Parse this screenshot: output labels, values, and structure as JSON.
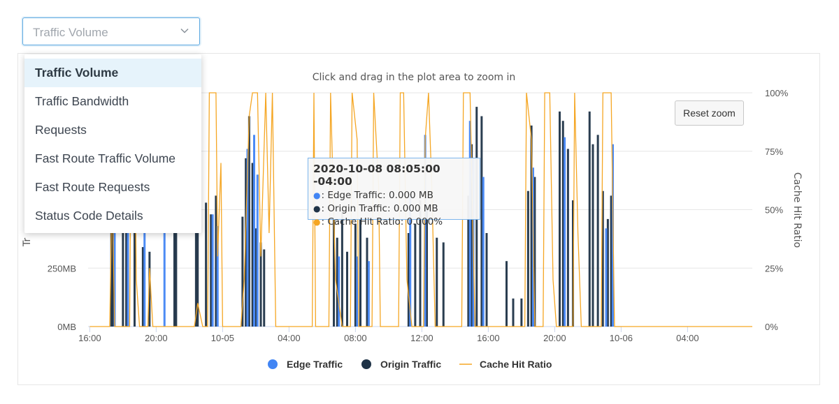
{
  "metric_select": {
    "value": "Traffic Volume",
    "icon": "chevron-down-icon"
  },
  "dropdown": {
    "items": [
      {
        "label": "Traffic Volume",
        "active": true
      },
      {
        "label": "Traffic Bandwidth"
      },
      {
        "label": "Requests"
      },
      {
        "label": "Fast Route Traffic Volume"
      },
      {
        "label": "Fast Route Requests"
      },
      {
        "label": "Status Code Details"
      }
    ]
  },
  "reset_zoom_label": "Reset zoom",
  "tooltip": {
    "title": "2020-10-08 08:05:00 -04:00",
    "rows": [
      {
        "bullet": "●",
        "text": ": Edge Traffic: 0.000 MB",
        "color": "#4285f4"
      },
      {
        "bullet": "●",
        "text": ": Origin Traffic: 0.000 MB",
        "color": "#1f3347"
      },
      {
        "bullet": "●",
        "text": ": Cache Hit Ratio: 0.000%",
        "color": "#f5a623"
      }
    ]
  },
  "chart_data": {
    "type": "bar",
    "subtitle": "Click and drag in the plot area to zoom in",
    "ylabel_left_visible_fragment": "Tr",
    "ylabel_right": "Cache Hit Ratio",
    "y_left_ticks": [
      "0MB",
      "250MB"
    ],
    "y_left_range_mb": [
      0,
      1000
    ],
    "y_right_ticks": [
      "0%",
      "25%",
      "50%",
      "75%",
      "100%"
    ],
    "y_right_range_pct": [
      0,
      100
    ],
    "x_ticks": [
      {
        "label": "16:00",
        "hour": 16
      },
      {
        "label": "20:00",
        "hour": 20
      },
      {
        "label": "10-05",
        "hour": 24
      },
      {
        "label": "04:00",
        "hour": 28
      },
      {
        "label": "08:00",
        "hour": 32
      },
      {
        "label": "12:00",
        "hour": 36
      },
      {
        "label": "16:00",
        "hour": 40
      },
      {
        "label": "20:00",
        "hour": 44
      },
      {
        "label": "10-06",
        "hour": 48
      },
      {
        "label": "04:00",
        "hour": 52
      }
    ],
    "x_range_hours": [
      15.9,
      55.9
    ],
    "grid": true,
    "legend": {
      "placement": "bottom",
      "items": [
        {
          "name": "Edge Traffic",
          "color": "#4285f4",
          "symbol": "circle"
        },
        {
          "name": "Origin Traffic",
          "color": "#1f3347",
          "symbol": "circle"
        },
        {
          "name": "Cache Hit Ratio",
          "color": "#f5a623",
          "symbol": "line"
        }
      ]
    },
    "series": [
      {
        "name": "Origin Traffic",
        "color": "#1f3347",
        "points": [
          [
            17.3,
            480
          ],
          [
            17.4,
            540
          ],
          [
            18.0,
            720
          ],
          [
            18.2,
            640
          ],
          [
            18.7,
            560
          ],
          [
            19.2,
            340
          ],
          [
            19.6,
            320
          ],
          [
            21.1,
            560
          ],
          [
            21.2,
            440
          ],
          [
            22.4,
            820
          ],
          [
            22.5,
            500
          ],
          [
            23.0,
            530
          ],
          [
            23.3,
            480
          ],
          [
            23.6,
            560
          ],
          [
            25.2,
            470
          ],
          [
            25.4,
            720
          ],
          [
            25.6,
            900
          ],
          [
            25.8,
            700
          ],
          [
            26.0,
            420
          ],
          [
            26.3,
            360
          ],
          [
            26.5,
            330
          ],
          [
            30.7,
            460
          ],
          [
            30.9,
            380
          ],
          [
            31.2,
            500
          ],
          [
            31.5,
            320
          ],
          [
            32.0,
            440
          ],
          [
            32.3,
            460
          ],
          [
            32.7,
            380
          ],
          [
            35.2,
            400
          ],
          [
            35.6,
            440
          ],
          [
            35.9,
            540
          ],
          [
            36.3,
            520
          ],
          [
            36.9,
            380
          ],
          [
            37.3,
            360
          ],
          [
            38.8,
            560
          ],
          [
            39.0,
            780
          ],
          [
            39.3,
            940
          ],
          [
            39.6,
            900
          ],
          [
            39.9,
            400
          ],
          [
            41.1,
            280
          ],
          [
            41.5,
            120
          ],
          [
            42.0,
            120
          ],
          [
            42.4,
            580
          ],
          [
            42.6,
            860
          ],
          [
            42.8,
            640
          ],
          [
            44.3,
            920
          ],
          [
            44.5,
            880
          ],
          [
            44.8,
            760
          ],
          [
            45.1,
            540
          ],
          [
            46.1,
            920
          ],
          [
            46.3,
            780
          ],
          [
            46.6,
            820
          ],
          [
            46.9,
            580
          ],
          [
            47.2,
            460
          ],
          [
            47.4,
            560
          ]
        ]
      },
      {
        "name": "Edge Traffic",
        "color": "#4285f4",
        "points": [
          [
            17.5,
            420
          ],
          [
            18.3,
            620
          ],
          [
            19.3,
            420
          ],
          [
            20.5,
            700
          ],
          [
            23.4,
            480
          ],
          [
            23.7,
            430
          ],
          [
            25.5,
            760
          ],
          [
            25.9,
            820
          ],
          [
            26.1,
            650
          ],
          [
            31.0,
            300
          ],
          [
            32.1,
            300
          ],
          [
            32.8,
            280
          ],
          [
            35.3,
            560
          ],
          [
            36.2,
            820
          ],
          [
            38.9,
            880
          ],
          [
            39.1,
            720
          ],
          [
            39.7,
            640
          ],
          [
            42.7,
            680
          ],
          [
            44.6,
            810
          ],
          [
            47.1,
            420
          ],
          [
            47.5,
            780
          ]
        ]
      },
      {
        "name": "Cache Hit Ratio",
        "color": "#f5a623",
        "points": [
          [
            16.0,
            0
          ],
          [
            17.2,
            0
          ],
          [
            17.35,
            60
          ],
          [
            17.5,
            0
          ],
          [
            18.4,
            0
          ],
          [
            18.5,
            100
          ],
          [
            18.7,
            100
          ],
          [
            18.8,
            20
          ],
          [
            19.0,
            0
          ],
          [
            19.5,
            0
          ],
          [
            19.6,
            25
          ],
          [
            19.8,
            0
          ],
          [
            22.3,
            0
          ],
          [
            22.5,
            10
          ],
          [
            22.8,
            0
          ],
          [
            23.1,
            0
          ],
          [
            23.2,
            100
          ],
          [
            23.6,
            100
          ],
          [
            23.7,
            30
          ],
          [
            23.9,
            70
          ],
          [
            24.0,
            0
          ],
          [
            25.1,
            0
          ],
          [
            25.3,
            20
          ],
          [
            25.6,
            90
          ],
          [
            25.8,
            100
          ],
          [
            26.1,
            100
          ],
          [
            26.3,
            30
          ],
          [
            26.6,
            100
          ],
          [
            26.8,
            40
          ],
          [
            27.0,
            100
          ],
          [
            27.2,
            0
          ],
          [
            28.5,
            0
          ],
          [
            29.4,
            0
          ],
          [
            29.5,
            100
          ],
          [
            29.6,
            0
          ],
          [
            30.4,
            0
          ],
          [
            30.5,
            100
          ],
          [
            30.8,
            20
          ],
          [
            31.2,
            0
          ],
          [
            31.7,
            0
          ],
          [
            31.8,
            100
          ],
          [
            32.1,
            80
          ],
          [
            32.2,
            0
          ],
          [
            33.0,
            0
          ],
          [
            33.1,
            100
          ],
          [
            33.4,
            60
          ],
          [
            33.5,
            0
          ],
          [
            34.6,
            0
          ],
          [
            34.7,
            100
          ],
          [
            34.9,
            100
          ],
          [
            35.1,
            20
          ],
          [
            35.4,
            0
          ],
          [
            36.1,
            0
          ],
          [
            36.2,
            80
          ],
          [
            36.4,
            100
          ],
          [
            36.6,
            60
          ],
          [
            36.8,
            0
          ],
          [
            38.4,
            0
          ],
          [
            38.5,
            100
          ],
          [
            38.9,
            100
          ],
          [
            39.2,
            0
          ],
          [
            42.2,
            0
          ],
          [
            42.3,
            100
          ],
          [
            42.6,
            80
          ],
          [
            42.8,
            0
          ],
          [
            43.3,
            0
          ],
          [
            43.4,
            100
          ],
          [
            43.7,
            100
          ],
          [
            43.9,
            20
          ],
          [
            44.1,
            0
          ],
          [
            45.1,
            0
          ],
          [
            45.2,
            100
          ],
          [
            45.4,
            40
          ],
          [
            45.6,
            0
          ],
          [
            46.8,
            0
          ],
          [
            46.9,
            100
          ],
          [
            47.4,
            100
          ],
          [
            47.6,
            0
          ],
          [
            55.9,
            0
          ]
        ]
      }
    ]
  }
}
